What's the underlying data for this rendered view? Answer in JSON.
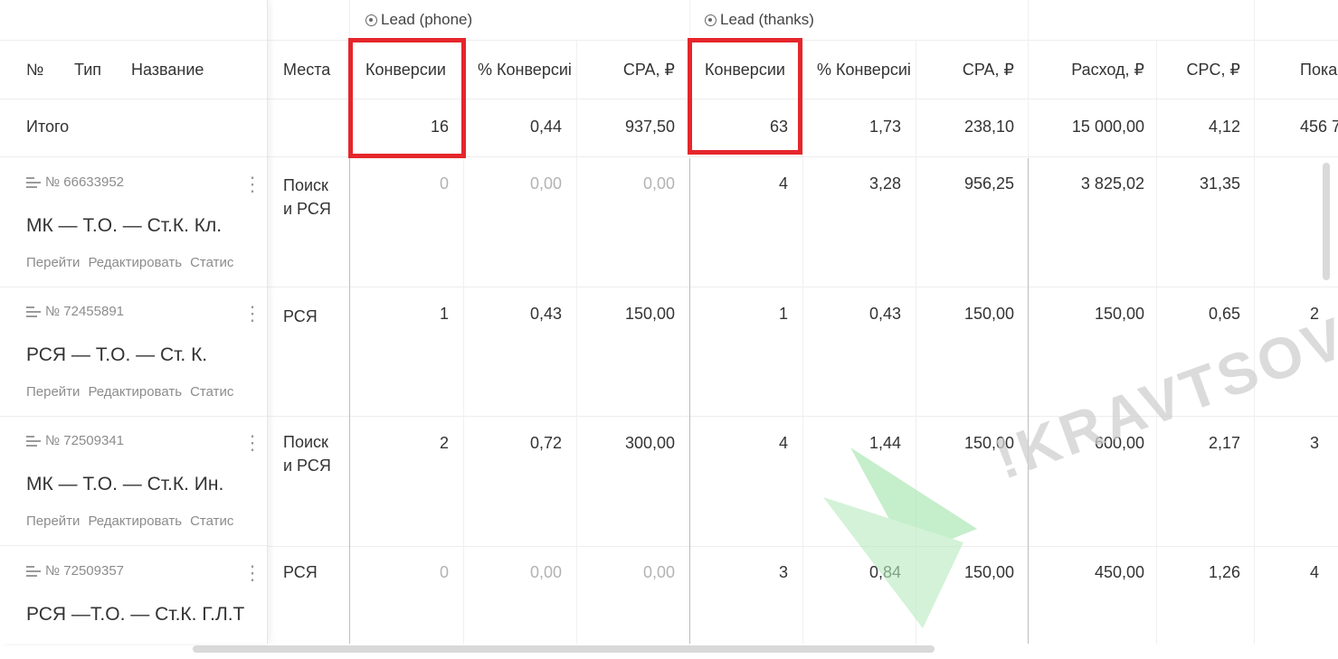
{
  "header": {
    "col_no": "№",
    "col_type": "Тип",
    "col_name": "Название",
    "col_places": "Места",
    "groups": [
      {
        "label": "Lead (phone)"
      },
      {
        "label": "Lead (thanks)"
      }
    ],
    "metrics": {
      "conv1": "Конверсии",
      "pct1": "% Конверсиі",
      "cpa1": "CPA, ₽",
      "conv2": "Конверсии",
      "pct2": "% Конверсиі",
      "cpa2": "CPA, ₽",
      "spend": "Расход, ₽",
      "cpc": "CPC, ₽",
      "impr": "Пока"
    }
  },
  "totals": {
    "label": "Итого",
    "conv1": "16",
    "pct1": "0,44",
    "cpa1": "937,50",
    "conv2": "63",
    "pct2": "1,73",
    "cpa2": "238,10",
    "spend": "15 000,00",
    "cpc": "4,12",
    "impr": "456 7"
  },
  "rows": [
    {
      "id": "№ 66633952",
      "name": "МК — Т.О. — Ст.К. Кл.",
      "links": [
        "Перейти",
        "Редактировать",
        "Статис"
      ],
      "places": [
        "Поиск",
        "и РСЯ"
      ],
      "conv1": "0",
      "pct1": "0,00",
      "cpa1": "0,00",
      "conv2": "4",
      "pct2": "3,28",
      "cpa2": "956,25",
      "spend": "3 825,02",
      "cpc": "31,35",
      "impr": ""
    },
    {
      "id": "№ 72455891",
      "name": "РСЯ — Т.О. — Ст. К.",
      "links": [
        "Перейти",
        "Редактировать",
        "Статис"
      ],
      "places": [
        "РСЯ",
        ""
      ],
      "conv1": "1",
      "pct1": "0,43",
      "cpa1": "150,00",
      "conv2": "1",
      "pct2": "0,43",
      "cpa2": "150,00",
      "spend": "150,00",
      "cpc": "0,65",
      "impr": "2"
    },
    {
      "id": "№ 72509341",
      "name": "МК — Т.О. — Ст.К. Ин.",
      "links": [
        "Перейти",
        "Редактировать",
        "Статис"
      ],
      "places": [
        "Поиск",
        "и РСЯ"
      ],
      "conv1": "2",
      "pct1": "0,72",
      "cpa1": "300,00",
      "conv2": "4",
      "pct2": "1,44",
      "cpa2": "150,00",
      "spend": "600,00",
      "cpc": "2,17",
      "impr": "3"
    },
    {
      "id": "№ 72509357",
      "name": "РСЯ —Т.О. — Ст.К. Г.Л.Т",
      "links": [],
      "places": [
        "РСЯ",
        ""
      ],
      "conv1": "0",
      "pct1": "0,00",
      "cpa1": "0,00",
      "conv2": "3",
      "pct2": "0,84",
      "cpa2": "150,00",
      "spend": "450,00",
      "cpc": "1,26",
      "impr": "4"
    }
  ],
  "watermark": {
    "text": "!KRAVTSOV"
  },
  "colors": {
    "highlight": "#e5262b",
    "logo": "#9fe3a9"
  }
}
